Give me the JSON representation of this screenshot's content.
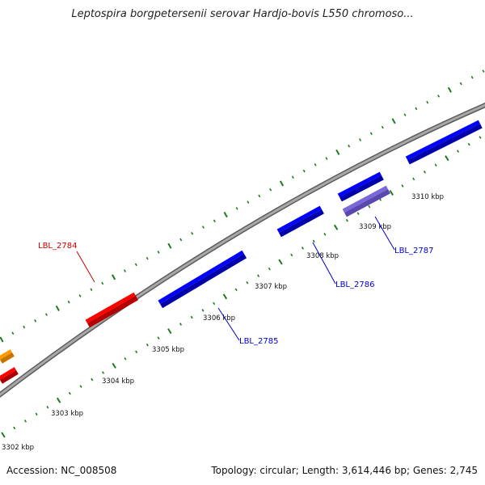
{
  "title": "Leptospira borgpetersenii serovar Hardjo-bovis L550 chromoso...",
  "footer": {
    "accession": "Accession: NC_008508",
    "summary": "Topology: circular; Length: 3,614,446 bp; Genes: 2,745"
  },
  "colors": {
    "backbone": "#8c8c8c",
    "ticks": "#1e7a1e",
    "forward_gene": "#ff0000",
    "reverse_gene": "#0000ff",
    "reverse_gene_light": "#7b68d8",
    "partial_gene": "#ff9900",
    "label_forward": "#cc0000",
    "label_reverse": "#0000cc"
  },
  "scale_labels": [
    "3302 kbp",
    "3303 kbp",
    "3304 kbp",
    "3305 kbp",
    "3306 kbp",
    "3307 kbp",
    "3308 kbp",
    "3309 kbp",
    "3310 kbp"
  ],
  "gene_labels": [
    {
      "name": "LBL_2784",
      "strand": "forward"
    },
    {
      "name": "LBL_2785",
      "strand": "reverse"
    },
    {
      "name": "LBL_2786",
      "strand": "reverse"
    },
    {
      "name": "LBL_2787",
      "strand": "reverse"
    }
  ]
}
